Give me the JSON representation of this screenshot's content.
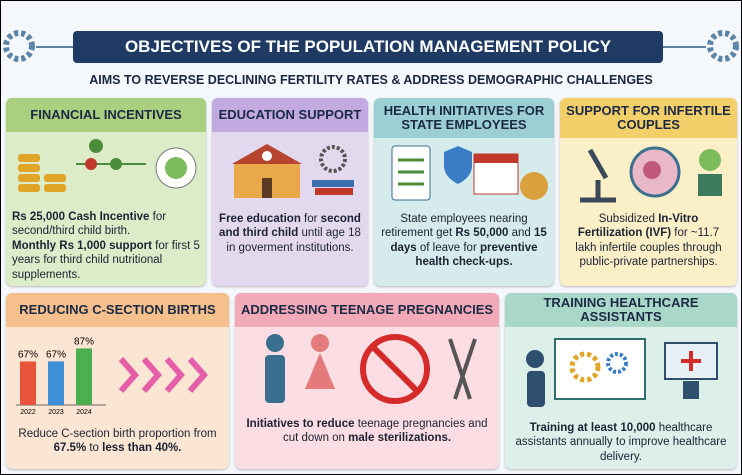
{
  "header": {
    "title": "OBJECTIVES OF THE POPULATION MANAGEMENT POLICY",
    "subtitle": "AIMS TO REVERSE DECLINING FERTILITY RATES & ADDRESS DEMOGRAPHIC CHALLENGES"
  },
  "panels": [
    {
      "title": "FINANCIAL INCENTIVES",
      "body": [
        "Rs 25,000 Cash Incentive",
        " for second/third child birth.",
        "Monthly Rs 1,000 support",
        " for first 5 years for third child nutritional supplements."
      ]
    },
    {
      "title": "EDUCATION SUPPORT",
      "body": [
        "Free education",
        " for ",
        "second and third child",
        " until age 18 in goverment institutions."
      ]
    },
    {
      "title": "HEALTH INITIATIVES FOR STATE EMPLOYEES",
      "body": [
        "State employees nearing retirement get ",
        "Rs 50,000",
        " and ",
        "15 days",
        " of leave for ",
        "preventive health check-ups."
      ]
    },
    {
      "title": "SUPPORT FOR INFERTILE COUPLES",
      "body": [
        "Subsidized ",
        "In-Vitro Fertilization (IVF)",
        " for ~11.7 lakh infertile couples through public-private partnerships."
      ]
    },
    {
      "title": "REDUCING C-SECTION BIRTHS",
      "body": [
        "Reduce C-section birth proportion from ",
        "67.5%",
        " to ",
        "less than 40%."
      ]
    },
    {
      "title": "ADDRESSING TEENAGE PREGNANCIES",
      "body": [
        "Initiatives to reduce",
        " teenage pregnancies and cut down on ",
        "male sterilizations."
      ]
    },
    {
      "title": "TRAINING HEALTHCARE ASSISTANTS",
      "body": [
        "Training at least 10,000",
        " healthcare assistants annually to improve healthcare delivery."
      ]
    }
  ],
  "chart_data": {
    "type": "bar",
    "categories": [
      "2022",
      "2023",
      "2024"
    ],
    "values": [
      67,
      67,
      87
    ],
    "value_labels": [
      "67%",
      "67%",
      "87%"
    ],
    "colors": [
      "#e8553a",
      "#3f8fd6",
      "#4cb050"
    ]
  }
}
